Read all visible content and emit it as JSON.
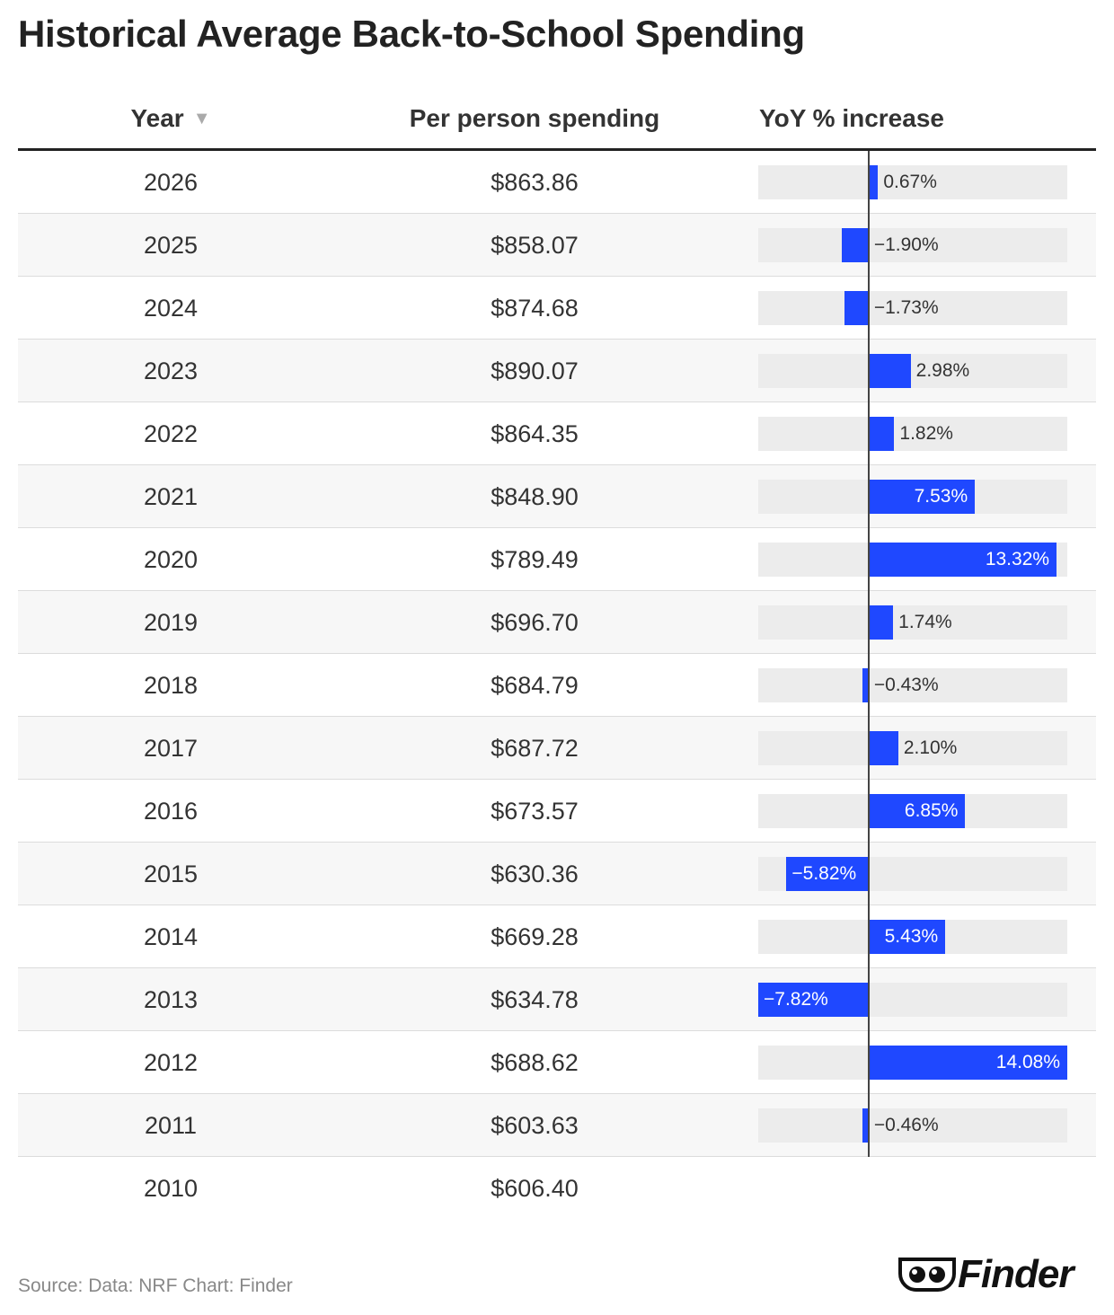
{
  "title": "Historical Average Back-to-School Spending",
  "header": {
    "year": "Year",
    "sort_icon": "▼",
    "spending": "Per person spending",
    "yoy": "YoY % increase"
  },
  "source": "Source: Data: NRF Chart: Finder",
  "logo": {
    "text": "Finder",
    "icon": "eyes-logo-icon"
  },
  "colors": {
    "bar": "#1f48ff",
    "track": "#ececec",
    "zero_line": "#444444"
  },
  "chart_data": {
    "type": "table",
    "columns": [
      "Year",
      "Per person spending",
      "YoY % increase"
    ],
    "bar_domain": [
      -7.82,
      14.08
    ],
    "rows": [
      {
        "year": "2026",
        "spending": "$863.86",
        "yoy": 0.67,
        "yoy_label": "0.67%"
      },
      {
        "year": "2025",
        "spending": "$858.07",
        "yoy": -1.9,
        "yoy_label": "−1.90%"
      },
      {
        "year": "2024",
        "spending": "$874.68",
        "yoy": -1.73,
        "yoy_label": "−1.73%"
      },
      {
        "year": "2023",
        "spending": "$890.07",
        "yoy": 2.98,
        "yoy_label": "2.98%"
      },
      {
        "year": "2022",
        "spending": "$864.35",
        "yoy": 1.82,
        "yoy_label": "1.82%"
      },
      {
        "year": "2021",
        "spending": "$848.90",
        "yoy": 7.53,
        "yoy_label": "7.53%"
      },
      {
        "year": "2020",
        "spending": "$789.49",
        "yoy": 13.32,
        "yoy_label": "13.32%"
      },
      {
        "year": "2019",
        "spending": "$696.70",
        "yoy": 1.74,
        "yoy_label": "1.74%"
      },
      {
        "year": "2018",
        "spending": "$684.79",
        "yoy": -0.43,
        "yoy_label": "−0.43%"
      },
      {
        "year": "2017",
        "spending": "$687.72",
        "yoy": 2.1,
        "yoy_label": "2.10%"
      },
      {
        "year": "2016",
        "spending": "$673.57",
        "yoy": 6.85,
        "yoy_label": "6.85%"
      },
      {
        "year": "2015",
        "spending": "$630.36",
        "yoy": -5.82,
        "yoy_label": "−5.82%"
      },
      {
        "year": "2014",
        "spending": "$669.28",
        "yoy": 5.43,
        "yoy_label": "5.43%"
      },
      {
        "year": "2013",
        "spending": "$634.78",
        "yoy": -7.82,
        "yoy_label": "−7.82%"
      },
      {
        "year": "2012",
        "spending": "$688.62",
        "yoy": 14.08,
        "yoy_label": "14.08%"
      },
      {
        "year": "2011",
        "spending": "$603.63",
        "yoy": -0.46,
        "yoy_label": "−0.46%"
      },
      {
        "year": "2010",
        "spending": "$606.40",
        "yoy": null,
        "yoy_label": null
      }
    ]
  }
}
